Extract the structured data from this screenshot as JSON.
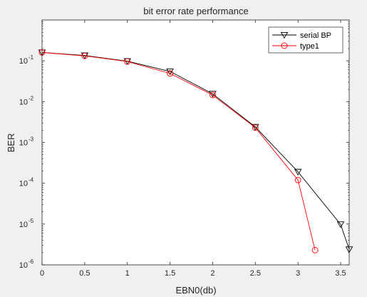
{
  "chart_data": {
    "type": "line",
    "title": "bit error rate performance",
    "xlabel": "EBN0(db)",
    "ylabel": "BER",
    "xlim": [
      0,
      3.6
    ],
    "ylim": [
      1e-06,
      1
    ],
    "yscale": "log",
    "grid": false,
    "legend_position": "top-right",
    "x_ticks": [
      {
        "value": 0,
        "label": "0"
      },
      {
        "value": 0.5,
        "label": "0.5"
      },
      {
        "value": 1,
        "label": "1"
      },
      {
        "value": 1.5,
        "label": "1.5"
      },
      {
        "value": 2,
        "label": "2"
      },
      {
        "value": 2.5,
        "label": "2.5"
      },
      {
        "value": 3,
        "label": "3"
      },
      {
        "value": 3.5,
        "label": "3.5"
      }
    ],
    "y_ticks": [
      {
        "value": 1e-06,
        "base": "10",
        "exp": "-6"
      },
      {
        "value": 1e-05,
        "base": "10",
        "exp": "-5"
      },
      {
        "value": 0.0001,
        "base": "10",
        "exp": "-4"
      },
      {
        "value": 0.001,
        "base": "10",
        "exp": "-3"
      },
      {
        "value": 0.01,
        "base": "10",
        "exp": "-2"
      },
      {
        "value": 0.1,
        "base": "10",
        "exp": "-1"
      }
    ],
    "series": [
      {
        "name": "serial BP",
        "color": "#000000",
        "marker": "triangle-down",
        "x": [
          0,
          0.5,
          1,
          1.5,
          2,
          2.5,
          3,
          3.5,
          3.6
        ],
        "y": [
          0.16,
          0.135,
          0.098,
          0.055,
          0.0155,
          0.0024,
          0.00019,
          9.8e-06,
          2.4e-06
        ]
      },
      {
        "name": "type1",
        "color": "#ff0000",
        "marker": "circle",
        "x": [
          0,
          0.5,
          1,
          1.5,
          2,
          2.5,
          3,
          3.2
        ],
        "y": [
          0.16,
          0.132,
          0.096,
          0.049,
          0.0145,
          0.0023,
          0.00012,
          2.3e-06
        ]
      }
    ]
  }
}
